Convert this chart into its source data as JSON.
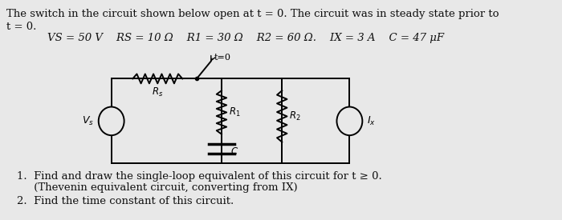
{
  "background_color": "#e8e8e8",
  "title_line1": "The switch in the circuit shown below open at t = 0. The circuit was in steady state prior to",
  "title_line2": "t = 0.",
  "params": "VS = 50 V    RS = 10 Ω    R1 = 30 Ω    R2 = 60 Ω.    IX = 3 A    C = 47 μF",
  "question1": "1.  Find and draw the single-loop equivalent of this circuit for t ≥ 0.",
  "question1b": "     (Thevenin equivalent circuit, converting from IX)",
  "question2": "2.  Find the time constant of this circuit.",
  "text_color": "#111111",
  "fs": 9.5
}
